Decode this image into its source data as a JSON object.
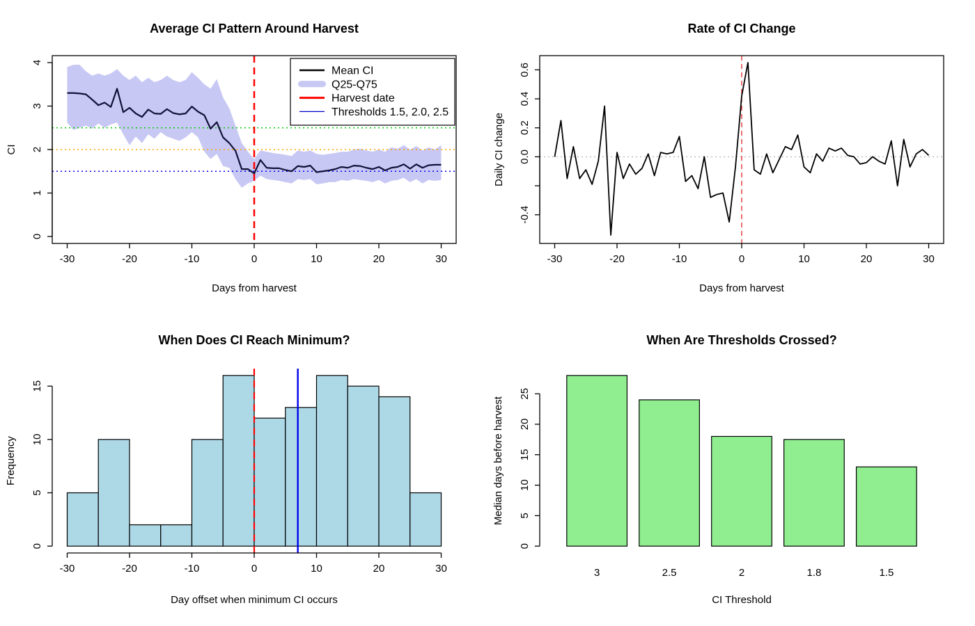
{
  "figure": {
    "background": "#ffffff"
  },
  "chart_data": [
    {
      "id": "avg-ci-pattern",
      "type": "line",
      "title": "Average CI Pattern Around Harvest",
      "xlabel": "Days from harvest",
      "ylabel": "CI",
      "xlim": [
        -30,
        30
      ],
      "ylim": [
        0,
        4
      ],
      "xticks": [
        -30,
        -20,
        -10,
        0,
        10,
        20,
        30
      ],
      "yticks": [
        0,
        1,
        2,
        3,
        4
      ],
      "grid": false,
      "x": [
        -30,
        -29,
        -28,
        -27,
        -26,
        -25,
        -24,
        -23,
        -22,
        -21,
        -20,
        -19,
        -18,
        -17,
        -16,
        -15,
        -14,
        -13,
        -12,
        -11,
        -10,
        -9,
        -8,
        -7,
        -6,
        -5,
        -4,
        -3,
        -2,
        -1,
        0,
        1,
        2,
        3,
        4,
        5,
        6,
        7,
        8,
        9,
        10,
        11,
        12,
        13,
        14,
        15,
        16,
        17,
        18,
        19,
        20,
        21,
        22,
        23,
        24,
        25,
        26,
        27,
        28,
        29,
        30
      ],
      "series": [
        {
          "name": "Q25-Q75",
          "type": "ribbon",
          "color": "#c8c8f4",
          "upper": [
            3.9,
            3.95,
            3.95,
            3.8,
            3.7,
            3.75,
            3.7,
            3.75,
            3.85,
            3.7,
            3.6,
            3.7,
            3.55,
            3.65,
            3.55,
            3.6,
            3.7,
            3.6,
            3.55,
            3.6,
            3.78,
            3.65,
            3.5,
            3.4,
            3.62,
            3.2,
            2.95,
            2.55,
            2.15,
            1.95,
            1.78,
            1.98,
            1.95,
            1.92,
            1.9,
            1.88,
            1.85,
            1.98,
            1.95,
            1.98,
            1.9,
            1.88,
            1.9,
            1.92,
            1.95,
            1.95,
            2.0,
            2.02,
            1.98,
            1.95,
            2.0,
            1.95,
            2.05,
            2.02,
            2.1,
            2.0,
            2.08,
            1.98,
            2.05,
            2.0,
            2.1
          ],
          "lower": [
            2.62,
            2.45,
            2.5,
            2.55,
            2.48,
            2.6,
            2.5,
            2.58,
            2.62,
            2.35,
            2.1,
            2.3,
            2.15,
            2.35,
            2.25,
            2.4,
            2.3,
            2.25,
            2.2,
            2.28,
            2.4,
            2.28,
            1.95,
            1.78,
            1.9,
            1.62,
            1.58,
            1.32,
            1.12,
            1.22,
            1.28,
            1.4,
            1.32,
            1.3,
            1.28,
            1.25,
            1.22,
            1.32,
            1.3,
            1.32,
            1.2,
            1.22,
            1.25,
            1.25,
            1.3,
            1.28,
            1.32,
            1.3,
            1.28,
            1.25,
            1.3,
            1.22,
            1.28,
            1.3,
            1.35,
            1.25,
            1.32,
            1.22,
            1.3,
            1.28,
            1.3
          ]
        },
        {
          "name": "Mean CI",
          "type": "line",
          "color": "#101038",
          "width": 2.2,
          "values": [
            3.3,
            3.3,
            3.29,
            3.27,
            3.15,
            3.02,
            3.08,
            2.98,
            3.4,
            2.86,
            2.96,
            2.83,
            2.75,
            2.92,
            2.83,
            2.82,
            2.93,
            2.84,
            2.81,
            2.83,
            2.99,
            2.87,
            2.79,
            2.48,
            2.63,
            2.28,
            2.15,
            1.97,
            1.55,
            1.55,
            1.45,
            1.76,
            1.58,
            1.57,
            1.57,
            1.53,
            1.5,
            1.62,
            1.6,
            1.63,
            1.48,
            1.5,
            1.52,
            1.55,
            1.6,
            1.58,
            1.63,
            1.62,
            1.58,
            1.55,
            1.6,
            1.52,
            1.58,
            1.6,
            1.66,
            1.56,
            1.66,
            1.58,
            1.64,
            1.65,
            1.65
          ]
        }
      ],
      "hlines": [
        {
          "y": 2.5,
          "color": "#00cc00",
          "style": "dotted",
          "width": 1.4,
          "name": "threshold-2.5"
        },
        {
          "y": 2.0,
          "color": "#ffa500",
          "style": "dotted",
          "width": 1.4,
          "name": "threshold-2.0"
        },
        {
          "y": 1.5,
          "color": "#0000ee",
          "style": "dotted",
          "width": 1.4,
          "name": "threshold-1.5"
        }
      ],
      "vlines": [
        {
          "x": 0,
          "color": "#ff0000",
          "style": "dashed",
          "width": 2.5,
          "name": "harvest-date"
        }
      ],
      "legend": {
        "position": "topright",
        "entries": [
          {
            "label": "Mean CI",
            "swatch": "line",
            "color": "#000000",
            "width": 2.5
          },
          {
            "label": "Q25-Q75",
            "swatch": "band",
            "color": "#c8c8f4"
          },
          {
            "label": "Harvest date",
            "swatch": "line",
            "color": "#ff0000",
            "width": 3
          },
          {
            "label": "Thresholds 1.5, 2.0, 2.5",
            "swatch": "line",
            "color": "#0000cc",
            "width": 1.2
          }
        ]
      }
    },
    {
      "id": "rate-of-ci-change",
      "type": "line",
      "title": "Rate of CI Change",
      "xlabel": "Days from harvest",
      "ylabel": "Daily CI change",
      "xlim": [
        -30,
        30
      ],
      "ylim": [
        -0.55,
        0.65
      ],
      "xticks": [
        -30,
        -20,
        -10,
        0,
        10,
        20,
        30
      ],
      "yticks": [
        -0.4,
        -0.2,
        0,
        0.2,
        0.4,
        0.6
      ],
      "ytick_labels": [
        "-0.4",
        "",
        "0.0",
        "0.2",
        "0.4",
        "0.6"
      ],
      "grid": false,
      "x": [
        -30,
        -29,
        -28,
        -27,
        -26,
        -25,
        -24,
        -23,
        -22,
        -21,
        -20,
        -19,
        -18,
        -17,
        -16,
        -15,
        -14,
        -13,
        -12,
        -11,
        -10,
        -9,
        -8,
        -7,
        -6,
        -5,
        -4,
        -3,
        -2,
        -1,
        0,
        1,
        2,
        3,
        4,
        5,
        6,
        7,
        8,
        9,
        10,
        11,
        12,
        13,
        14,
        15,
        16,
        17,
        18,
        19,
        20,
        21,
        22,
        23,
        24,
        25,
        26,
        27,
        28,
        29,
        30
      ],
      "series": [
        {
          "name": "Daily CI change",
          "type": "line",
          "color": "#000000",
          "width": 1.8,
          "values": [
            0.0,
            0.25,
            -0.15,
            0.07,
            -0.15,
            -0.09,
            -0.19,
            -0.03,
            0.35,
            -0.54,
            0.03,
            -0.15,
            -0.05,
            -0.12,
            -0.08,
            0.02,
            -0.13,
            0.03,
            0.02,
            0.03,
            0.14,
            -0.17,
            -0.13,
            -0.22,
            0.0,
            -0.28,
            -0.26,
            -0.25,
            -0.45,
            -0.07,
            0.42,
            0.65,
            -0.09,
            -0.12,
            0.02,
            -0.11,
            -0.02,
            0.07,
            0.05,
            0.15,
            -0.07,
            -0.11,
            0.02,
            -0.03,
            0.06,
            0.04,
            0.06,
            0.01,
            0.0,
            -0.05,
            -0.04,
            0.0,
            -0.03,
            -0.05,
            0.11,
            -0.2,
            0.12,
            -0.07,
            0.02,
            0.05,
            0.01
          ]
        }
      ],
      "hlines": [
        {
          "y": 0,
          "color": "#b8b8b8",
          "style": "dotted",
          "width": 1.4,
          "name": "zero-line"
        }
      ],
      "vlines": [
        {
          "x": 0,
          "color": "#e02222",
          "style": "dashed",
          "width": 1.3,
          "name": "harvest-date"
        }
      ]
    },
    {
      "id": "ci-minimum-histogram",
      "type": "histogram",
      "title": "When Does CI Reach Minimum?",
      "xlabel": "Day offset when minimum CI occurs",
      "ylabel": "Frequency",
      "xlim": [
        -30,
        30
      ],
      "ylim": [
        0,
        16
      ],
      "xticks": [
        -30,
        -20,
        -10,
        0,
        10,
        20,
        30
      ],
      "yticks": [
        0,
        5,
        10,
        15
      ],
      "bin_start": -30,
      "bin_width": 5,
      "counts": [
        5,
        10,
        2,
        2,
        10,
        16,
        12,
        13,
        16,
        15,
        14,
        5
      ],
      "bar_fill": "#add8e6",
      "bar_stroke": "#000000",
      "vlines": [
        {
          "x": 0,
          "color": "#ff0000",
          "style": "dashed",
          "width": 2.2,
          "name": "harvest-date"
        },
        {
          "x": 7,
          "color": "#0000ee",
          "style": "solid",
          "width": 2.4,
          "name": "median-minimum-day"
        }
      ]
    },
    {
      "id": "thresholds-crossed",
      "type": "bar",
      "title": "When Are Thresholds Crossed?",
      "xlabel": "CI Threshold",
      "ylabel": "Median days before harvest",
      "categories": [
        "3",
        "2.5",
        "2",
        "1.8",
        "1.5"
      ],
      "values": [
        28,
        24,
        18,
        17.5,
        13
      ],
      "ylim": [
        0,
        28
      ],
      "yticks": [
        0,
        5,
        10,
        15,
        20,
        25
      ],
      "bar_fill": "#90ee90",
      "bar_stroke": "#000000"
    }
  ]
}
